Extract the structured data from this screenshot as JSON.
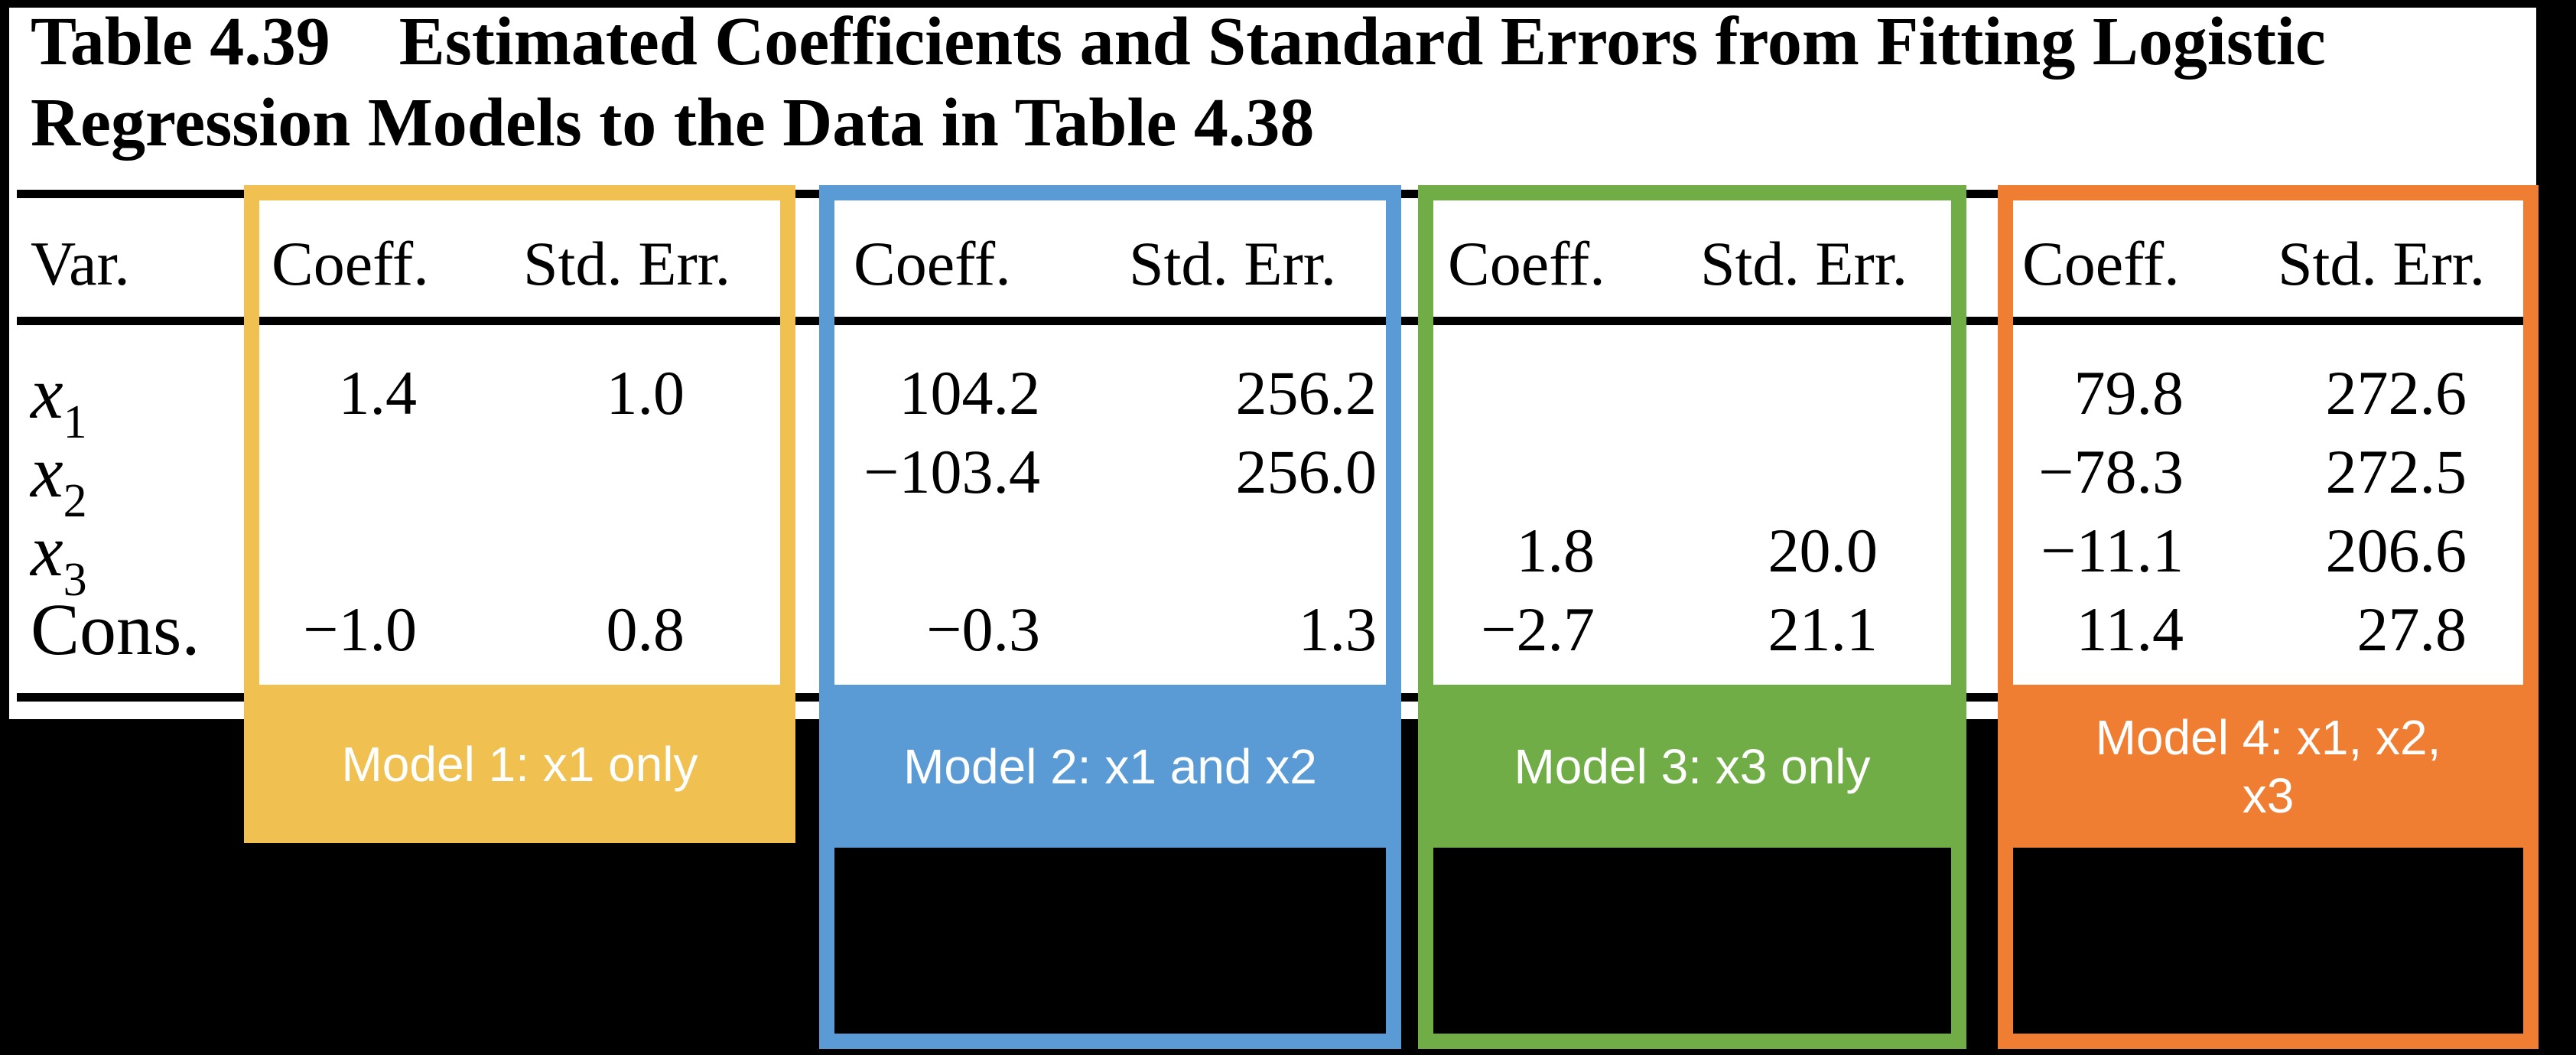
{
  "title": {
    "line1": "Table 4.39    Estimated Coefficients and Standard Errors from Fitting Logistic",
    "line2": "Regression Models to the Data in Table 4.38"
  },
  "table": {
    "var_header": "Var.",
    "coeff_header": "Coeff.",
    "stderr_header": "Std. Err.",
    "rows": [
      {
        "base": "x",
        "sub": "1"
      },
      {
        "base": "x",
        "sub": "2"
      },
      {
        "base": "x",
        "sub": "3"
      },
      {
        "base": "Cons.",
        "sub": ""
      }
    ]
  },
  "models": [
    {
      "label": "Model 1: x1 only",
      "color": "#F0C150",
      "coeff": [
        "1.4",
        "",
        "",
        "−1.0"
      ],
      "stderr": [
        "1.0",
        "",
        "",
        "0.8"
      ]
    },
    {
      "label": "Model 2: x1 and x2",
      "color": "#5B9BD5",
      "coeff": [
        "104.2",
        "−103.4",
        "",
        "−0.3"
      ],
      "stderr": [
        "256.2",
        "256.0",
        "",
        "1.3"
      ]
    },
    {
      "label": "Model 3: x3 only",
      "color": "#70AD47",
      "coeff": [
        "",
        "",
        "1.8",
        "−2.7"
      ],
      "stderr": [
        "",
        "",
        "20.0",
        "21.1"
      ]
    },
    {
      "label": "Model 4: x1, x2,\nx3",
      "color": "#EF7E32",
      "coeff": [
        "79.8",
        "−78.3",
        "−11.1",
        "11.4"
      ],
      "stderr": [
        "272.6",
        "272.5",
        "206.6",
        "27.8"
      ]
    }
  ],
  "colors": {
    "page_background": "#000000",
    "paper": "#ffffff",
    "text": "#000000",
    "label_text": "#ffffff"
  }
}
